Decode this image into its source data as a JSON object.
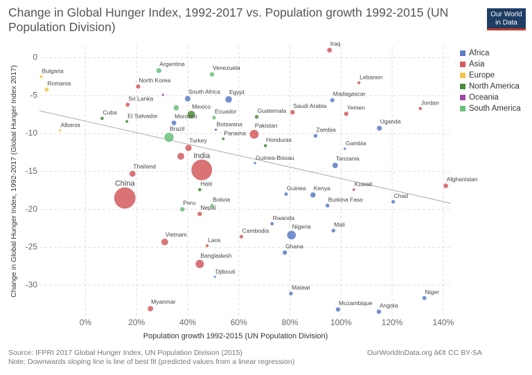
{
  "chart_data": {
    "type": "scatter",
    "title": "Change in Global Hunger Index, 1992-2017 vs. Population growth 1992-2015 (UN Population Division)",
    "logo": [
      "Our World",
      "in Data"
    ],
    "xlabel": "Population growth 1992-2015 (UN Population Division)",
    "ylabel": "Change in Global Hunger Index, 1992-2017 (Global Hunger Index 2017)",
    "source": "Source: IFPRI 2017 Global Hunger Index, UN Population Division (2015)",
    "note": "Note: Downwards sloping line is line of best fit (predicted values from a linear regression)",
    "credit": "OurWorldInData.org â€¢ CC BY-SA",
    "xlim": [
      -18,
      143
    ],
    "ylim": [
      -34,
      1.5
    ],
    "xticks": [
      {
        "value": 0,
        "label": "0%"
      },
      {
        "value": 20,
        "label": "20%"
      },
      {
        "value": 40,
        "label": "40%"
      },
      {
        "value": 60,
        "label": "60%"
      },
      {
        "value": 80,
        "label": "80%"
      },
      {
        "value": 100,
        "label": "100%"
      },
      {
        "value": 120,
        "label": "120%"
      },
      {
        "value": 140,
        "label": "140%"
      }
    ],
    "yticks": [
      0,
      -5,
      -10,
      -15,
      -20,
      -25,
      -30
    ],
    "grid": true,
    "legend": "top-right",
    "fit_line": {
      "x": [
        -18,
        143
      ],
      "y": [
        -7,
        -19.2
      ]
    },
    "series": [
      {
        "name": "Africa",
        "color": "#5b7bc4",
        "labels": [
          "Egypt",
          "South Africa",
          "Morocco",
          "Madagascar",
          "Zambia",
          "Uganda",
          "Gambia",
          "Tanzania",
          "Guinea-Bissau",
          "Guinea",
          "Kenya",
          "Burkina Faso",
          "Chad",
          "Botswana",
          "Rwanda",
          "Nigeria",
          "Mali",
          "Ghana",
          "Djibouti",
          "Malawi",
          "Mozambique",
          "Angola",
          "Niger"
        ],
        "x": [
          56,
          40,
          34.6,
          96.6,
          90,
          115,
          101.5,
          97.7,
          66.3,
          78.5,
          89,
          94.7,
          120.4,
          51,
          73,
          80.6,
          97,
          78,
          50.6,
          80.4,
          98.8,
          114.8,
          132.6
        ],
        "y": [
          -5.5,
          -5.4,
          -8.6,
          -5.6,
          -10.3,
          -9.3,
          -12,
          -14.2,
          -13.9,
          -18,
          -18.1,
          -19.5,
          -19,
          -9.5,
          -21.9,
          -23.4,
          -22.8,
          -25.7,
          -28.9,
          -31.1,
          -33.2,
          -33.5,
          -31.7
        ],
        "sizes": [
          92,
          55,
          34,
          24,
          16,
          40,
          2,
          53,
          2,
          12,
          47,
          18,
          14,
          2,
          11,
          181,
          17,
          27,
          1,
          17,
          28,
          28,
          20
        ]
      },
      {
        "name": "Asia",
        "color": "#d45a5e",
        "labels": [
          "Iraq",
          "Lebanon",
          "Jordan",
          "Saudi Arabia",
          "Yemen",
          "Pakistan",
          "Kuwait",
          "Afghanistan",
          "India",
          "China",
          "Thailand",
          "Turkey",
          "Nepal",
          "Vietnam",
          "Laos",
          "Bangladesh",
          "Myanmar",
          "Cambodia",
          "North Korea",
          "Sri Lanka",
          null
        ],
        "x": [
          95.5,
          107,
          131,
          81,
          102,
          66,
          105,
          141,
          45.5,
          15.4,
          18.4,
          40.3,
          44.7,
          31,
          47.6,
          44.7,
          25.4,
          61,
          20.6,
          16.5,
          37.3
        ],
        "y": [
          1,
          -3.3,
          -6.7,
          -7.2,
          -7.4,
          -10.1,
          -17.4,
          -16.9,
          -14.8,
          -18.5,
          -15.3,
          -11.9,
          -20.6,
          -24.3,
          -24.8,
          -27.2,
          -33.1,
          -23.6,
          -3.8,
          -6.2,
          -13
        ],
        "sizes": [
          36,
          6,
          9,
          31,
          27,
          189,
          4,
          34,
          1309,
          1397,
          68,
          78,
          28,
          93,
          7,
          161,
          52,
          15,
          25,
          21,
          101
        ]
      },
      {
        "name": "Europe",
        "color": "#f2c649",
        "labels": [
          "Bulgaria",
          "Romania",
          "Albania"
        ],
        "x": [
          -17.3,
          -15.2,
          -10
        ],
        "y": [
          -2.5,
          -4.2,
          -9.6
        ],
        "sizes": [
          7,
          20,
          3
        ]
      },
      {
        "name": "North America",
        "color": "#4b8b3b",
        "labels": [
          "Cuba",
          "El Salvador",
          "Mexico",
          "Guatemala",
          "Honduras",
          "Panama",
          "Haiti"
        ],
        "x": [
          6.5,
          16.2,
          41.4,
          67,
          70.4,
          53.9,
          44.7
        ],
        "y": [
          -8,
          -8.4,
          -7.5,
          -7.8,
          -11.6,
          -10.7,
          -17.4
        ],
        "sizes": [
          11,
          6,
          125,
          16,
          9,
          4,
          11
        ]
      },
      {
        "name": "Oceania",
        "color": "#a349a4",
        "labels": [
          null
        ],
        "x": [
          30.3
        ],
        "y": [
          -4.9
        ],
        "sizes": [
          1
        ]
      },
      {
        "name": "South America",
        "color": "#6ac07b",
        "labels": [
          "Argentina",
          "Venezuela",
          "Ecuador",
          "Brazil",
          "Peru",
          "Bolivia",
          null
        ],
        "x": [
          28.7,
          49.5,
          50.3,
          32.7,
          37.9,
          49.5,
          35.5
        ],
        "y": [
          -1.7,
          -2.2,
          -7.9,
          -10.5,
          -20,
          -19.5,
          -6.6
        ],
        "sizes": [
          43,
          31,
          16,
          206,
          31,
          11,
          48
        ]
      }
    ]
  }
}
